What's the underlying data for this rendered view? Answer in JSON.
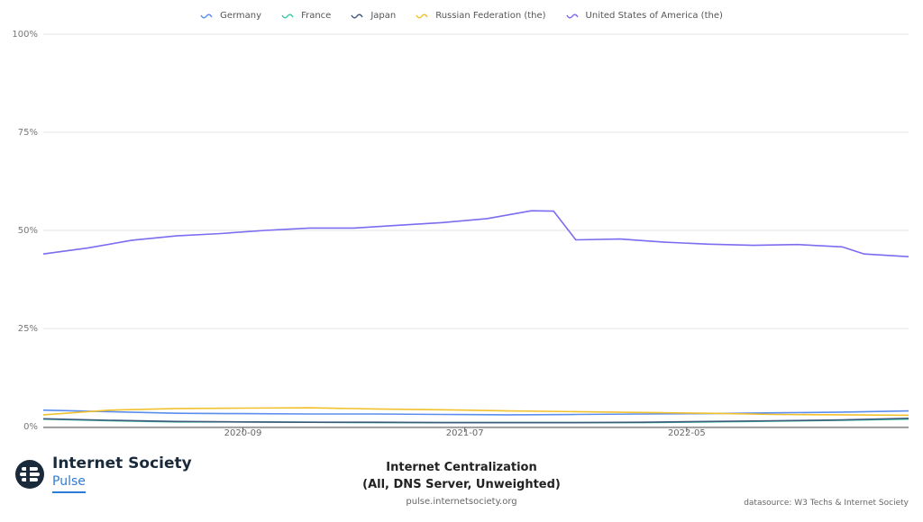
{
  "chart_data": {
    "type": "line",
    "title": "Internet Centralization",
    "subtitle": "(All, DNS Server, Unweighted)",
    "ylim": [
      0,
      100
    ],
    "yticks": [
      "0%",
      "25%",
      "50%",
      "75%",
      "100%"
    ],
    "xticks": [
      "2020-09",
      "2021-07",
      "2022-05"
    ],
    "legend_position": "top-center",
    "grid": true,
    "x_range": [
      "2019-12",
      "2023-03"
    ],
    "series": [
      {
        "name": "Germany",
        "color": "#5b8def",
        "x": [
          "2019-12",
          "2020-03",
          "2020-06",
          "2020-09",
          "2020-12",
          "2021-03",
          "2021-06",
          "2021-09",
          "2021-12",
          "2022-03",
          "2022-06",
          "2022-09",
          "2022-12",
          "2023-03"
        ],
        "values": [
          4.2,
          3.8,
          3.4,
          3.3,
          3.2,
          3.2,
          3.1,
          3.0,
          3.1,
          3.2,
          3.3,
          3.5,
          3.7,
          4.0
        ]
      },
      {
        "name": "France",
        "color": "#3cc9a4",
        "x": [
          "2019-12",
          "2020-03",
          "2020-06",
          "2020-09",
          "2020-12",
          "2021-03",
          "2021-06",
          "2021-09",
          "2021-12",
          "2022-03",
          "2022-06",
          "2022-09",
          "2022-12",
          "2023-03"
        ],
        "values": [
          1.9,
          1.5,
          1.2,
          1.2,
          1.1,
          1.0,
          1.0,
          1.0,
          1.0,
          1.0,
          1.2,
          1.4,
          1.6,
          1.9
        ]
      },
      {
        "name": "Japan",
        "color": "#3f5a7a",
        "x": [
          "2019-12",
          "2020-03",
          "2020-06",
          "2020-09",
          "2020-12",
          "2021-03",
          "2021-06",
          "2021-09",
          "2021-12",
          "2022-03",
          "2022-06",
          "2022-09",
          "2022-12",
          "2023-03"
        ],
        "values": [
          2.0,
          1.6,
          1.3,
          1.2,
          1.1,
          1.1,
          1.0,
          1.0,
          1.0,
          1.1,
          1.3,
          1.5,
          1.7,
          2.1
        ]
      },
      {
        "name": "Russian Federation (the)",
        "color": "#f2c12e",
        "x": [
          "2019-12",
          "2020-03",
          "2020-06",
          "2020-09",
          "2020-12",
          "2021-03",
          "2021-06",
          "2021-09",
          "2021-12",
          "2022-03",
          "2022-06",
          "2022-09",
          "2022-12",
          "2023-03"
        ],
        "values": [
          3.0,
          4.2,
          4.6,
          4.7,
          4.8,
          4.5,
          4.3,
          4.0,
          3.8,
          3.6,
          3.4,
          3.1,
          3.0,
          2.9
        ]
      },
      {
        "name": "United States of America (the)",
        "color": "#7b6cf0",
        "x": [
          "2019-12",
          "2020-02",
          "2020-04",
          "2020-06",
          "2020-08",
          "2020-10",
          "2020-12",
          "2021-02",
          "2021-04",
          "2021-06",
          "2021-08",
          "2021-10",
          "2021-11",
          "2021-12",
          "2022-02",
          "2022-04",
          "2022-06",
          "2022-08",
          "2022-10",
          "2022-12",
          "2023-01",
          "2023-03"
        ],
        "values": [
          44.0,
          45.5,
          47.5,
          48.6,
          49.2,
          50.0,
          50.6,
          50.6,
          51.3,
          52.0,
          53.0,
          55.0,
          54.9,
          47.6,
          47.8,
          47.0,
          46.5,
          46.2,
          46.4,
          45.8,
          44.0,
          43.3
        ]
      }
    ]
  },
  "branding": {
    "logo_title": "Internet Society",
    "logo_subtitle": "Pulse",
    "url": "pulse.internetsociety.org",
    "datasource": "datasource: W3 Techs & Internet Society"
  }
}
